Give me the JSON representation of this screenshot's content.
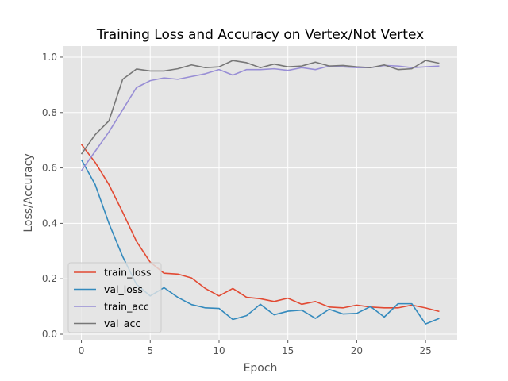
{
  "chart_data": {
    "type": "line",
    "title": "Training Loss and Accuracy on Vertex/Not Vertex",
    "xlabel": "Epoch",
    "ylabel": "Loss/Accuracy",
    "xlim": [
      -1.3,
      27.3
    ],
    "ylim": [
      -0.02,
      1.04
    ],
    "xticks": [
      0,
      5,
      10,
      15,
      20,
      25
    ],
    "xtick_labels": [
      "0",
      "5",
      "10",
      "15",
      "20",
      "25"
    ],
    "yticks": [
      0.0,
      0.2,
      0.4,
      0.6,
      0.8,
      1.0
    ],
    "ytick_labels": [
      "0.0",
      "0.2",
      "0.4",
      "0.6",
      "0.8",
      "1.0"
    ],
    "grid": true,
    "style": "ggplot",
    "legend_position": "lower-left",
    "x": [
      0,
      1,
      2,
      3,
      4,
      5,
      6,
      7,
      8,
      9,
      10,
      11,
      12,
      13,
      14,
      15,
      16,
      17,
      18,
      19,
      20,
      21,
      22,
      23,
      24,
      25,
      26
    ],
    "series": [
      {
        "name": "train_loss",
        "color": "#e24a33",
        "values": [
          0.685,
          0.62,
          0.54,
          0.44,
          0.335,
          0.26,
          0.22,
          0.217,
          0.203,
          0.165,
          0.138,
          0.165,
          0.133,
          0.128,
          0.118,
          0.13,
          0.108,
          0.118,
          0.098,
          0.095,
          0.105,
          0.098,
          0.095,
          0.095,
          0.105,
          0.095,
          0.082
        ]
      },
      {
        "name": "val_loss",
        "color": "#348abd",
        "values": [
          0.63,
          0.54,
          0.4,
          0.28,
          0.18,
          0.138,
          0.168,
          0.133,
          0.107,
          0.095,
          0.093,
          0.053,
          0.067,
          0.108,
          0.07,
          0.083,
          0.087,
          0.057,
          0.09,
          0.073,
          0.075,
          0.1,
          0.062,
          0.11,
          0.11,
          0.037,
          0.057
        ]
      },
      {
        "name": "train_acc",
        "color": "#988ed5",
        "values": [
          0.59,
          0.66,
          0.73,
          0.81,
          0.89,
          0.915,
          0.925,
          0.92,
          0.93,
          0.94,
          0.955,
          0.935,
          0.955,
          0.955,
          0.958,
          0.952,
          0.962,
          0.955,
          0.968,
          0.965,
          0.962,
          0.962,
          0.97,
          0.968,
          0.962,
          0.965,
          0.968
        ]
      },
      {
        "name": "val_acc",
        "color": "#777777",
        "values": [
          0.65,
          0.72,
          0.77,
          0.92,
          0.957,
          0.95,
          0.95,
          0.958,
          0.972,
          0.962,
          0.965,
          0.988,
          0.98,
          0.962,
          0.975,
          0.965,
          0.968,
          0.982,
          0.968,
          0.97,
          0.965,
          0.962,
          0.972,
          0.955,
          0.958,
          0.988,
          0.978
        ]
      }
    ]
  }
}
